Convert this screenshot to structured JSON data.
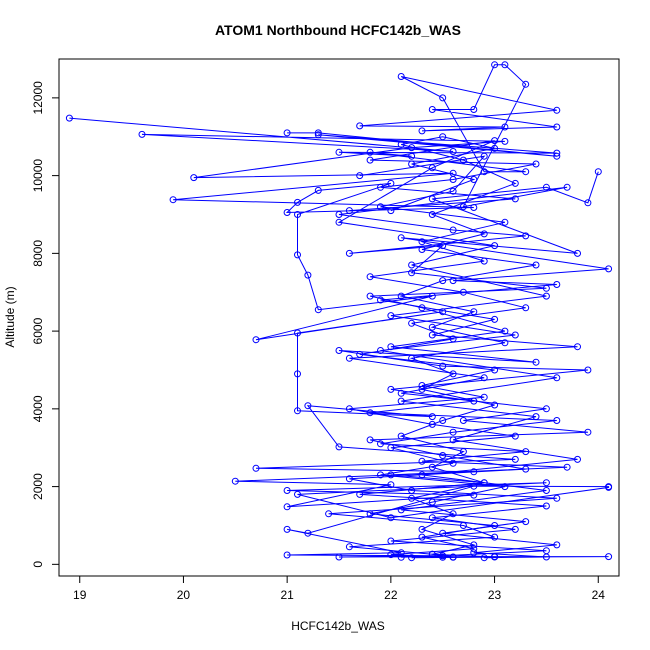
{
  "chart_data": {
    "type": "line",
    "title": "ATOM1 Northbound HCFC142b_WAS",
    "xlabel": "HCFC142b_WAS",
    "ylabel": "Altitude (m)",
    "xlim": [
      18.8,
      24.2
    ],
    "ylim": [
      -300,
      13000
    ],
    "x_ticks": [
      19,
      20,
      21,
      22,
      23,
      24
    ],
    "y_ticks": [
      0,
      2000,
      4000,
      6000,
      8000,
      10000,
      12000
    ],
    "grid": false,
    "legend": "none",
    "marker": "open-circle",
    "colors": {
      "series": "#0000ff",
      "axis": "#000000"
    },
    "series": [
      {
        "name": "",
        "points": [
          [
            18.9,
            11480
          ],
          [
            22.6,
            10620
          ],
          [
            19.6,
            11060
          ],
          [
            23.1,
            10880
          ],
          [
            22.2,
            10720
          ],
          [
            20.1,
            9950
          ],
          [
            22.6,
            10060
          ],
          [
            19.9,
            9380
          ],
          [
            22.8,
            9180
          ],
          [
            21.0,
            9050
          ],
          [
            21.1,
            9310
          ],
          [
            21.3,
            9620
          ],
          [
            22.0,
            9800
          ],
          [
            21.1,
            9000
          ],
          [
            21.1,
            7960
          ],
          [
            21.2,
            7440
          ],
          [
            21.3,
            6550
          ],
          [
            22.4,
            6900
          ],
          [
            20.7,
            5780
          ],
          [
            22.5,
            6500
          ],
          [
            21.1,
            5950
          ],
          [
            21.1,
            4900
          ],
          [
            21.1,
            3950
          ],
          [
            22.4,
            3800
          ],
          [
            21.2,
            4080
          ],
          [
            21.5,
            3020
          ],
          [
            23.2,
            2700
          ],
          [
            20.7,
            2470
          ],
          [
            22.8,
            2380
          ],
          [
            20.5,
            2140
          ],
          [
            22.0,
            2050
          ],
          [
            21.0,
            1480
          ],
          [
            22.8,
            1780
          ],
          [
            21.0,
            1900
          ],
          [
            23.5,
            2100
          ],
          [
            21.1,
            1800
          ],
          [
            22.0,
            1200
          ],
          [
            24.1,
            1980
          ],
          [
            24.1,
            2000
          ],
          [
            22.8,
            2010
          ],
          [
            21.2,
            800
          ],
          [
            21.0,
            900
          ],
          [
            22.1,
            300
          ],
          [
            21.0,
            240
          ],
          [
            22.5,
            220
          ],
          [
            21.5,
            190
          ],
          [
            23.0,
            200
          ],
          [
            24.1,
            200
          ],
          [
            22.5,
            180
          ]
        ]
      },
      {
        "name": "",
        "points": [
          [
            21.0,
            11100
          ],
          [
            21.3,
            11100
          ],
          [
            23.6,
            10500
          ],
          [
            21.3,
            11050
          ],
          [
            23.6,
            10580
          ],
          [
            21.5,
            10600
          ],
          [
            22.2,
            10500
          ],
          [
            21.8,
            10600
          ],
          [
            23.3,
            10100
          ],
          [
            22.9,
            10100
          ],
          [
            22.5,
            12000
          ],
          [
            22.1,
            12550
          ],
          [
            23.6,
            11680
          ],
          [
            21.7,
            11280
          ],
          [
            23.1,
            11250
          ],
          [
            22.3,
            11150
          ],
          [
            23.6,
            11250
          ],
          [
            22.4,
            11700
          ],
          [
            22.8,
            11700
          ],
          [
            23.0,
            12850
          ],
          [
            23.1,
            12850
          ],
          [
            23.3,
            12350
          ],
          [
            22.7,
            9200
          ],
          [
            23.7,
            9700
          ],
          [
            21.5,
            9000
          ],
          [
            22.6,
            8600
          ],
          [
            23.3,
            8450
          ],
          [
            21.6,
            8000
          ],
          [
            22.5,
            8200
          ],
          [
            22.2,
            7500
          ],
          [
            23.5,
            7100
          ],
          [
            21.8,
            6900
          ],
          [
            22.3,
            6600
          ],
          [
            23.1,
            6000
          ],
          [
            22.0,
            5600
          ],
          [
            23.4,
            5200
          ],
          [
            21.5,
            5500
          ],
          [
            22.5,
            5100
          ],
          [
            23.9,
            5000
          ],
          [
            22.0,
            4500
          ],
          [
            22.8,
            4200
          ],
          [
            21.8,
            3900
          ],
          [
            23.6,
            3700
          ],
          [
            22.6,
            3400
          ],
          [
            21.9,
            3100
          ],
          [
            23.3,
            2900
          ],
          [
            22.3,
            2650
          ],
          [
            23.7,
            2500
          ],
          [
            22.0,
            2300
          ],
          [
            22.9,
            2100
          ],
          [
            21.7,
            1800
          ],
          [
            23.5,
            1500
          ],
          [
            22.4,
            1200
          ],
          [
            23.2,
            900
          ],
          [
            22.0,
            600
          ],
          [
            23.5,
            350
          ],
          [
            22.5,
            220
          ],
          [
            22.1,
            180
          ]
        ]
      },
      {
        "name": "",
        "points": [
          [
            24.0,
            10100
          ],
          [
            23.9,
            9300
          ],
          [
            23.5,
            9700
          ],
          [
            22.4,
            9400
          ],
          [
            23.8,
            8000
          ],
          [
            22.1,
            8400
          ],
          [
            24.1,
            7600
          ],
          [
            22.6,
            7300
          ],
          [
            23.6,
            7200
          ],
          [
            21.9,
            6800
          ],
          [
            23.0,
            6300
          ],
          [
            22.4,
            5900
          ],
          [
            23.8,
            5600
          ],
          [
            21.6,
            5300
          ],
          [
            22.9,
            4800
          ],
          [
            22.1,
            4400
          ],
          [
            23.5,
            4000
          ],
          [
            22.7,
            3700
          ],
          [
            23.9,
            3400
          ],
          [
            21.8,
            3200
          ],
          [
            22.5,
            2800
          ],
          [
            23.3,
            2450
          ],
          [
            21.6,
            2200
          ],
          [
            22.2,
            1900
          ],
          [
            23.6,
            1700
          ],
          [
            21.4,
            1300
          ],
          [
            22.7,
            1000
          ],
          [
            23.0,
            700
          ],
          [
            21.6,
            450
          ],
          [
            22.4,
            260
          ],
          [
            23.0,
            190
          ],
          [
            22.2,
            170
          ]
        ]
      },
      {
        "name": "",
        "points": [
          [
            21.7,
            10000
          ],
          [
            22.9,
            10500
          ],
          [
            22.6,
            9600
          ],
          [
            21.9,
            9200
          ],
          [
            23.1,
            8800
          ],
          [
            22.3,
            8300
          ],
          [
            22.9,
            7800
          ],
          [
            21.8,
            7400
          ],
          [
            22.7,
            7000
          ],
          [
            23.3,
            6600
          ],
          [
            22.2,
            6200
          ],
          [
            22.6,
            5800
          ],
          [
            21.7,
            5400
          ],
          [
            23.0,
            5000
          ],
          [
            22.3,
            4600
          ],
          [
            22.9,
            4300
          ],
          [
            21.6,
            4000
          ],
          [
            22.4,
            3600
          ],
          [
            23.2,
            3300
          ],
          [
            22.0,
            3000
          ],
          [
            22.6,
            2600
          ],
          [
            21.9,
            2300
          ],
          [
            23.1,
            2000
          ],
          [
            22.4,
            1600
          ],
          [
            21.8,
            1300
          ],
          [
            23.0,
            1000
          ],
          [
            22.3,
            700
          ],
          [
            22.8,
            400
          ],
          [
            22.0,
            250
          ],
          [
            22.6,
            180
          ]
        ]
      },
      {
        "name": "",
        "points": [
          [
            22.0,
            9100
          ],
          [
            22.8,
            9900
          ],
          [
            22.2,
            10300
          ],
          [
            23.0,
            10700
          ],
          [
            22.5,
            11000
          ],
          [
            22.1,
            10800
          ],
          [
            22.7,
            10400
          ],
          [
            23.2,
            9800
          ],
          [
            22.4,
            9000
          ],
          [
            22.9,
            8500
          ],
          [
            22.3,
            8100
          ],
          [
            23.4,
            7700
          ],
          [
            22.5,
            7300
          ],
          [
            22.1,
            6900
          ],
          [
            22.8,
            6500
          ],
          [
            22.4,
            6100
          ],
          [
            23.1,
            5700
          ],
          [
            22.2,
            5300
          ],
          [
            22.6,
            4900
          ],
          [
            22.3,
            4500
          ],
          [
            23.0,
            4100
          ],
          [
            22.5,
            3700
          ],
          [
            22.1,
            3300
          ],
          [
            22.7,
            2900
          ],
          [
            22.4,
            2500
          ],
          [
            22.9,
            2100
          ],
          [
            22.2,
            1700
          ],
          [
            22.6,
            1300
          ],
          [
            22.3,
            900
          ],
          [
            22.8,
            500
          ],
          [
            22.4,
            260
          ],
          [
            22.6,
            190
          ]
        ]
      },
      {
        "name": "",
        "points": [
          [
            21.6,
            9100
          ],
          [
            23.2,
            9400
          ],
          [
            21.9,
            9700
          ],
          [
            22.6,
            9900
          ],
          [
            23.4,
            10300
          ],
          [
            21.8,
            10400
          ],
          [
            23.0,
            10900
          ],
          [
            22.4,
            10200
          ],
          [
            21.5,
            8800
          ],
          [
            23.0,
            8200
          ],
          [
            22.2,
            7700
          ],
          [
            23.5,
            6900
          ],
          [
            22.0,
            6400
          ],
          [
            23.2,
            5900
          ],
          [
            21.9,
            5500
          ],
          [
            23.6,
            4800
          ],
          [
            22.1,
            4200
          ],
          [
            23.4,
            3800
          ],
          [
            22.6,
            3200
          ],
          [
            23.8,
            2700
          ],
          [
            22.3,
            2300
          ],
          [
            23.5,
            1900
          ],
          [
            22.1,
            1400
          ],
          [
            23.3,
            1100
          ],
          [
            22.5,
            800
          ],
          [
            23.6,
            500
          ],
          [
            22.8,
            300
          ],
          [
            23.5,
            190
          ],
          [
            22.9,
            170
          ]
        ]
      }
    ]
  }
}
